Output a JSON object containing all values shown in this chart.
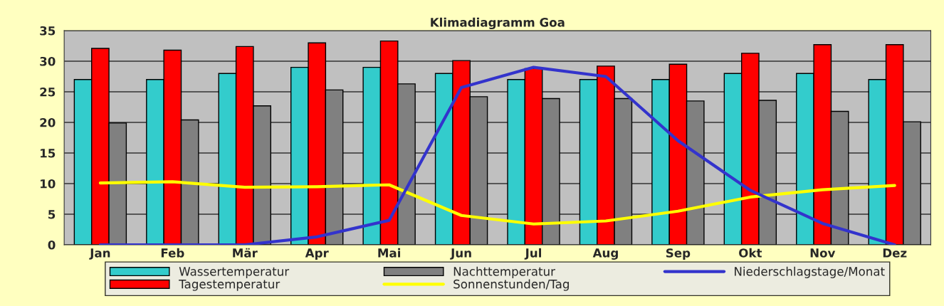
{
  "chart_data": {
    "type": "bar",
    "title": "Klimadiagramm Goa",
    "categories": [
      "Jan",
      "Feb",
      "Mär",
      "Apr",
      "Mai",
      "Jun",
      "Jul",
      "Aug",
      "Sep",
      "Okt",
      "Nov",
      "Dez"
    ],
    "series": [
      {
        "name": "Wassertemperatur",
        "color": "#33cccc",
        "values": [
          27,
          27,
          28,
          29,
          29,
          28,
          27,
          27,
          27,
          28,
          28,
          27
        ]
      },
      {
        "name": "Tagestemperatur",
        "color": "#ff0000",
        "values": [
          32.1,
          31.8,
          32.4,
          33,
          33.3,
          30.1,
          28.8,
          29.2,
          29.5,
          31.3,
          32.7,
          32.7
        ]
      },
      {
        "name": "Nachttemperatur",
        "color": "#808080",
        "values": [
          19.9,
          20.4,
          22.7,
          25.3,
          26.3,
          24.2,
          23.9,
          23.9,
          23.5,
          23.6,
          21.8,
          20.1
        ]
      },
      {
        "name": "Sonnenstunden/Tag",
        "type": "line",
        "color": "#ffff00",
        "values": [
          10.1,
          10.3,
          9.4,
          9.5,
          9.8,
          4.8,
          3.4,
          3.9,
          5.5,
          7.8,
          9,
          9.7
        ]
      },
      {
        "name": "Niederschlagstage/Monat",
        "type": "line",
        "color": "#3333cc",
        "values": [
          0,
          0,
          0,
          1.3,
          4,
          25.7,
          29,
          27.5,
          17,
          8.9,
          3.5,
          0
        ]
      }
    ],
    "ylim": [
      0,
      35
    ],
    "yticks": [
      0,
      5,
      10,
      15,
      20,
      25,
      30,
      35
    ],
    "grid": "y",
    "legend": "bottom"
  }
}
